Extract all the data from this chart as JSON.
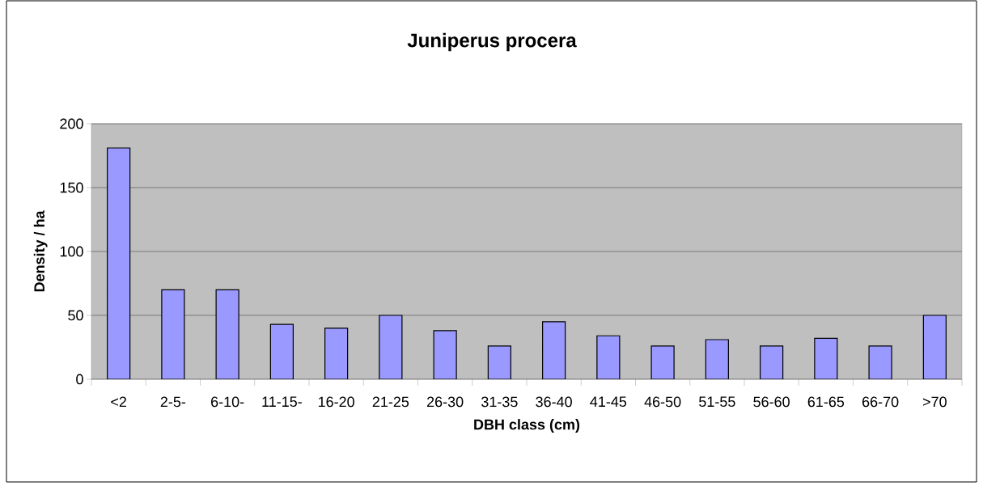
{
  "chart_data": {
    "type": "bar",
    "title": "Juniperus procera",
    "xlabel": "DBH class (cm)",
    "ylabel": "Density / ha",
    "categories": [
      "<2",
      "2-5-",
      "6-10-",
      "11-15-",
      "16-20",
      "21-25",
      "26-30",
      "31-35",
      "36-40",
      "41-45",
      "46-50",
      "51-55",
      "56-60",
      "61-65",
      "66-70",
      ">70"
    ],
    "values": [
      181,
      70,
      70,
      43,
      40,
      50,
      38,
      26,
      45,
      34,
      26,
      31,
      26,
      32,
      26,
      50
    ],
    "color": "#9999ff",
    "ylim": [
      0,
      200
    ],
    "yticks": [
      0,
      50,
      100,
      150,
      200
    ],
    "grid": "y"
  }
}
